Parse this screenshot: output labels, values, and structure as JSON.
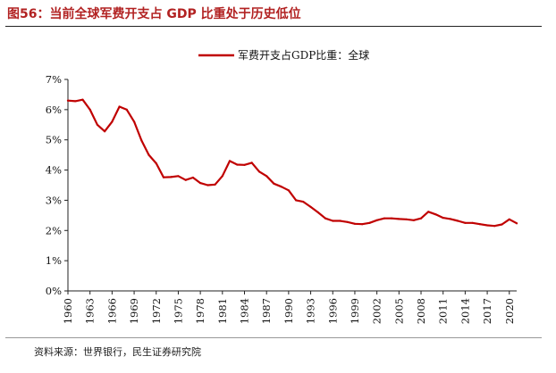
{
  "figure": {
    "title": "图56：当前全球军费开支占 GDP 比重处于历史低位",
    "source": "资料来源：世界银行，民生证券研究院"
  },
  "chart_data": {
    "type": "line",
    "title": "",
    "xlabel": "",
    "ylabel": "",
    "ylim": [
      0,
      7
    ],
    "y_ticks": [
      0,
      1,
      2,
      3,
      4,
      5,
      6,
      7
    ],
    "y_tick_labels": [
      "0%",
      "1%",
      "2%",
      "3%",
      "4%",
      "5%",
      "6%",
      "7%"
    ],
    "x_ticks": [
      1960,
      1963,
      1966,
      1969,
      1972,
      1975,
      1978,
      1981,
      1984,
      1987,
      1990,
      1993,
      1996,
      1999,
      2002,
      2005,
      2008,
      2011,
      2014,
      2017,
      2020
    ],
    "x_tick_labels": [
      "1960",
      "1963",
      "1966",
      "1969",
      "1972",
      "1975",
      "1978",
      "1981",
      "1984",
      "1987",
      "1990",
      "1993",
      "1996",
      "1999",
      "2002",
      "2005",
      "2008",
      "2011",
      "2014",
      "2017",
      "2020"
    ],
    "legend_position": "top-center",
    "series": [
      {
        "name": "军费开支占GDP比重：全球",
        "color": "#c00000",
        "x": [
          1960,
          1961,
          1962,
          1963,
          1964,
          1965,
          1966,
          1967,
          1968,
          1969,
          1970,
          1971,
          1972,
          1973,
          1974,
          1975,
          1976,
          1977,
          1978,
          1979,
          1980,
          1981,
          1982,
          1983,
          1984,
          1985,
          1986,
          1987,
          1988,
          1989,
          1990,
          1991,
          1992,
          1993,
          1994,
          1995,
          1996,
          1997,
          1998,
          1999,
          2000,
          2001,
          2002,
          2003,
          2004,
          2005,
          2006,
          2007,
          2008,
          2009,
          2010,
          2011,
          2012,
          2013,
          2014,
          2015,
          2016,
          2017,
          2018,
          2019,
          2020,
          2021
        ],
        "values": [
          6.3,
          6.28,
          6.33,
          6.0,
          5.5,
          5.28,
          5.6,
          6.1,
          6.0,
          5.6,
          4.98,
          4.5,
          4.22,
          3.76,
          3.77,
          3.8,
          3.67,
          3.75,
          3.57,
          3.5,
          3.52,
          3.8,
          4.3,
          4.18,
          4.17,
          4.24,
          3.95,
          3.8,
          3.55,
          3.45,
          3.33,
          3.0,
          2.95,
          2.78,
          2.6,
          2.4,
          2.32,
          2.32,
          2.28,
          2.22,
          2.21,
          2.25,
          2.34,
          2.4,
          2.4,
          2.38,
          2.37,
          2.34,
          2.4,
          2.62,
          2.53,
          2.42,
          2.38,
          2.32,
          2.25,
          2.25,
          2.21,
          2.17,
          2.15,
          2.2,
          2.37,
          2.24
        ]
      }
    ]
  }
}
